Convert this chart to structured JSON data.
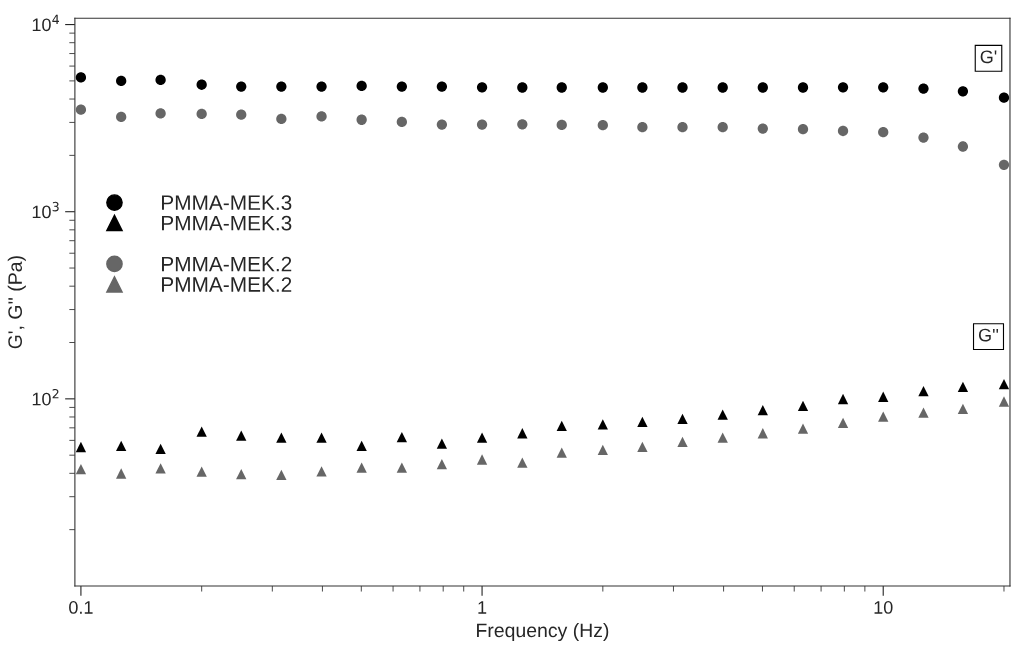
{
  "chart_data": {
    "type": "scatter",
    "xlabel": "Frequency (Hz)",
    "ylabel": "G', G'' (Pa)",
    "x": [
      0.1,
      0.126,
      0.158,
      0.2,
      0.251,
      0.316,
      0.398,
      0.501,
      0.631,
      0.794,
      1,
      1.26,
      1.58,
      2,
      2.51,
      3.16,
      3.98,
      5.01,
      6.31,
      7.94,
      10,
      12.6,
      15.8,
      20
    ],
    "log": "xy",
    "xlim": [
      0.0966,
      20.7
    ],
    "ylim": [
      10,
      10800
    ],
    "xticks": [
      0.1,
      1,
      10
    ],
    "yticks": [
      {
        "value": 100,
        "label": "10$^{2}$"
      },
      {
        "value": 1000,
        "label": "10$^{3}$"
      },
      {
        "value": 10000,
        "label": "10$^{4}$"
      }
    ],
    "grid": false,
    "legend": "left",
    "series": [
      {
        "name": "PMMA-MEK.3",
        "color": "#000000",
        "marker": "circle",
        "values": [
          5220,
          5000,
          5060,
          4770,
          4660,
          4660,
          4660,
          4700,
          4660,
          4660,
          4620,
          4610,
          4610,
          4610,
          4610,
          4610,
          4610,
          4610,
          4610,
          4620,
          4620,
          4550,
          4400,
          4070
        ]
      },
      {
        "name": "PMMA-MEK.3",
        "color": "#000000",
        "marker": "triangle",
        "values": [
          55.3,
          56,
          54,
          66.8,
          63.6,
          62.1,
          62,
          56,
          62.4,
          57.7,
          62,
          65.5,
          71.7,
          73,
          75.4,
          78.2,
          82.4,
          87,
          91.8,
          99.8,
          102.6,
          110,
          116,
          120
        ]
      },
      {
        "name": "PMMA-MEK.2",
        "color": "#666666",
        "marker": "circle",
        "values": [
          3510,
          3210,
          3350,
          3330,
          3300,
          3130,
          3230,
          3100,
          3020,
          2920,
          2920,
          2930,
          2910,
          2900,
          2830,
          2830,
          2830,
          2780,
          2760,
          2700,
          2660,
          2490,
          2230,
          1780
        ]
      },
      {
        "name": "PMMA-MEK.2",
        "color": "#666666",
        "marker": "triangle",
        "values": [
          42.1,
          39.9,
          42.5,
          40.8,
          39.6,
          39.2,
          41,
          42.9,
          42.9,
          44.8,
          47.4,
          45.6,
          51.6,
          53.4,
          55.4,
          58.9,
          62.1,
          65.5,
          69.3,
          74.4,
          80.4,
          84.4,
          88.4,
          96.8
        ]
      }
    ],
    "annotations": [
      {
        "text": "G'",
        "x": 18.3,
        "y": 6600
      },
      {
        "text": "G''",
        "x": 18.3,
        "y": 215
      }
    ]
  }
}
